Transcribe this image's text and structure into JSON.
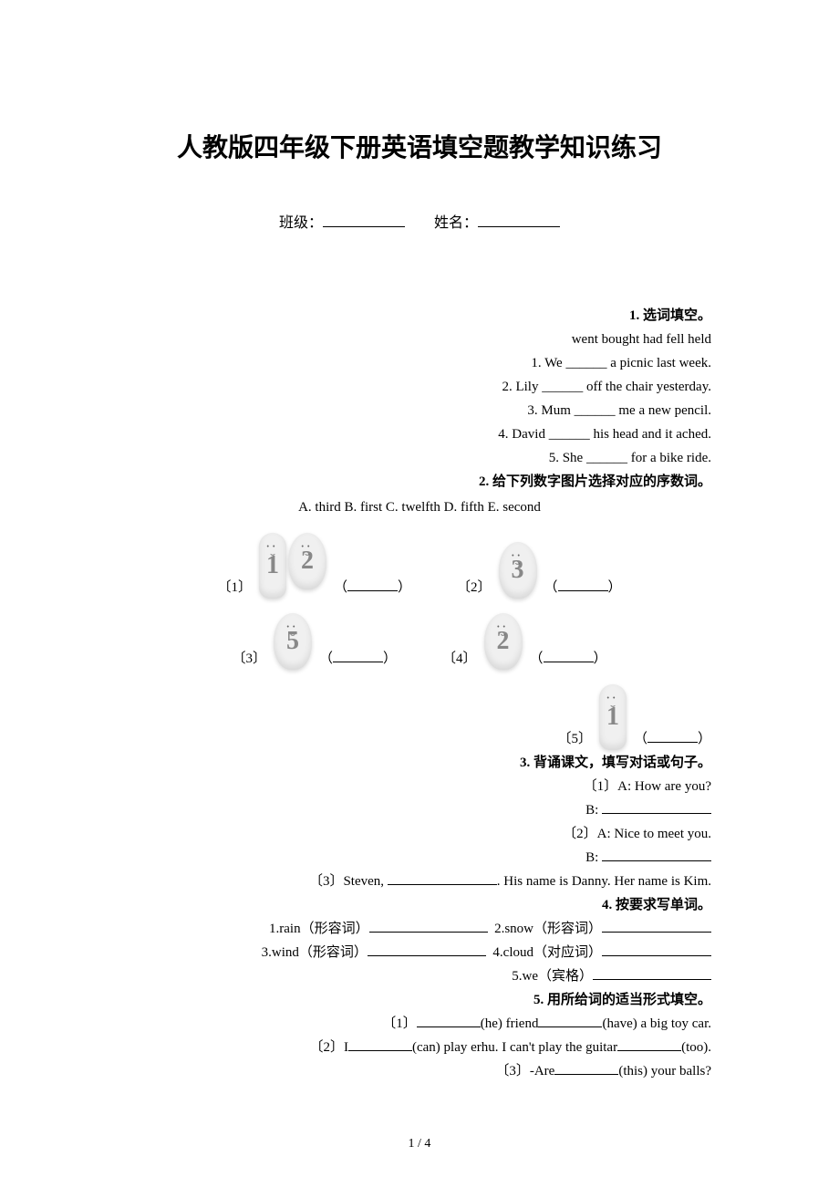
{
  "title": "人教版四年级下册英语填空题教学知识练习",
  "class_label": "班级：",
  "name_label": "姓名：",
  "q1": {
    "title": "1. 选词填空。",
    "word_bank": "went  bought had  fell  held",
    "items": [
      "1. We ______ a picnic last week.",
      "2. Lily ______ off the chair yesterday.",
      "3. Mum ______ me a new pencil.",
      "4. David ______ his head and it ached.",
      "5. She ______ for a bike ride."
    ]
  },
  "q2": {
    "title": "2. 给下列数字图片选择对应的序数词。",
    "options": "A. third   B. first   C. twelfth   D. fifth   E. second",
    "items": [
      {
        "label": "〔1〕",
        "digits": [
          "1",
          "2"
        ]
      },
      {
        "label": "〔2〕",
        "digits": [
          "3"
        ]
      },
      {
        "label": "〔3〕",
        "digits": [
          "5"
        ]
      },
      {
        "label": "〔4〕",
        "digits": [
          "2"
        ]
      },
      {
        "label": "〔5〕",
        "digits": [
          "1"
        ]
      }
    ]
  },
  "q3": {
    "title": "3. 背诵课文，填写对话或句子。",
    "l1": "〔1〕A: How are you?",
    "l2": "B:",
    "l3": "〔2〕A: Nice to meet you.",
    "l4": "B:",
    "l5_pre": "〔3〕Steven, ",
    "l5_post": ". His name is Danny. Her name is Kim."
  },
  "q4": {
    "title": "4. 按要求写单词。",
    "i1": "1.rain（形容词）",
    "i2": "2.snow（形容词）",
    "i3": "3.wind（形容词）",
    "i4": "4.cloud（对应词）",
    "i5": "5.we（宾格）"
  },
  "q5": {
    "title": "5. 用所给词的适当形式填空。",
    "l1_a": "〔1〕",
    "l1_b": "(he) friend",
    "l1_c": "(have) a big toy car.",
    "l2_a": "〔2〕I",
    "l2_b": "(can) play erhu. I can't play the guitar",
    "l2_c": "(too).",
    "l3_a": "〔3〕-Are",
    "l3_b": "(this) your balls?"
  },
  "page": "1 / 4"
}
